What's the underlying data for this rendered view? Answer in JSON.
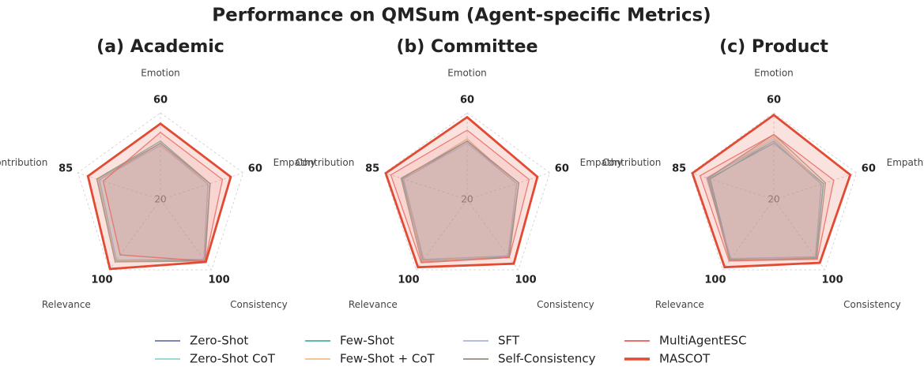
{
  "title": "Performance on QMSum (Agent-specific Metrics)",
  "chart_data": [
    {
      "type": "radar",
      "title": "(a) Academic",
      "axes": [
        "Emotion",
        "Empathy",
        "Consistency",
        "Relevance",
        "Contribution"
      ],
      "rmin": 20,
      "rmax": [
        60,
        60,
        100,
        100,
        85
      ],
      "series": [
        {
          "name": "Zero-Shot",
          "color": "#7f86b8",
          "values": [
            46,
            43,
            88,
            89,
            68
          ]
        },
        {
          "name": "Zero-Shot CoT",
          "color": "#9fd6d6",
          "values": [
            46,
            44,
            89,
            90,
            69
          ]
        },
        {
          "name": "Few-Shot",
          "color": "#5bbcae",
          "values": [
            47,
            44,
            89,
            90,
            70
          ]
        },
        {
          "name": "Few-Shot + CoT",
          "color": "#f2c79e",
          "values": [
            46,
            43,
            88,
            90,
            69
          ]
        },
        {
          "name": "SFT",
          "color": "#b3bbe2",
          "values": [
            45,
            43,
            88,
            89,
            68
          ]
        },
        {
          "name": "Self-Consistency",
          "color": "#a39a8a",
          "values": [
            46,
            44,
            90,
            91,
            70
          ]
        },
        {
          "name": "MultiAgentESC",
          "color": "#ef6f6c",
          "values": [
            51,
            50,
            90,
            83,
            65
          ]
        },
        {
          "name": "MASCOT",
          "color": "#e24a33",
          "values": [
            55,
            54,
            91,
            99,
            77
          ]
        }
      ]
    },
    {
      "type": "radar",
      "title": "(b) Committee",
      "axes": [
        "Emotion",
        "Empathy",
        "Consistency",
        "Relevance",
        "Contribution"
      ],
      "rmin": 20,
      "rmax": [
        60,
        60,
        100,
        100,
        85
      ],
      "series": [
        {
          "name": "Zero-Shot",
          "color": "#7f86b8",
          "values": [
            47,
            44,
            84,
            89,
            70
          ]
        },
        {
          "name": "Zero-Shot CoT",
          "color": "#9fd6d6",
          "values": [
            48,
            44,
            85,
            90,
            71
          ]
        },
        {
          "name": "Few-Shot",
          "color": "#5bbcae",
          "values": [
            47,
            45,
            85,
            89,
            71
          ]
        },
        {
          "name": "Few-Shot + CoT",
          "color": "#f2c79e",
          "values": [
            48,
            44,
            84,
            90,
            70
          ]
        },
        {
          "name": "SFT",
          "color": "#b3bbe2",
          "values": [
            46,
            44,
            84,
            88,
            70
          ]
        },
        {
          "name": "Self-Consistency",
          "color": "#a39a8a",
          "values": [
            47,
            45,
            86,
            91,
            72
          ]
        },
        {
          "name": "MultiAgentESC",
          "color": "#ef6f6c",
          "values": [
            52,
            50,
            86,
            92,
            80
          ]
        },
        {
          "name": "MASCOT",
          "color": "#e24a33",
          "values": [
            58,
            54,
            93,
            97,
            84
          ]
        }
      ]
    },
    {
      "type": "radar",
      "title": "(c) Product",
      "axes": [
        "Emotion",
        "Empathy",
        "Consistency",
        "Relevance",
        "Contribution"
      ],
      "rmin": 20,
      "rmax": [
        60,
        60,
        100,
        100,
        85
      ],
      "series": [
        {
          "name": "Zero-Shot",
          "color": "#7f86b8",
          "values": [
            47,
            43,
            85,
            88,
            70
          ]
        },
        {
          "name": "Zero-Shot CoT",
          "color": "#9fd6d6",
          "values": [
            48,
            44,
            86,
            88,
            72
          ]
        },
        {
          "name": "Few-Shot",
          "color": "#5bbcae",
          "values": [
            46,
            44,
            86,
            88,
            71
          ]
        },
        {
          "name": "Few-Shot + CoT",
          "color": "#f2c79e",
          "values": [
            49,
            43,
            85,
            89,
            72
          ]
        },
        {
          "name": "SFT",
          "color": "#b3bbe2",
          "values": [
            47,
            43,
            85,
            87,
            73
          ]
        },
        {
          "name": "Self-Consistency",
          "color": "#a39a8a",
          "values": [
            50,
            45,
            87,
            89,
            72
          ]
        },
        {
          "name": "MultiAgentESC",
          "color": "#ef6f6c",
          "values": [
            50,
            49,
            88,
            90,
            78
          ]
        },
        {
          "name": "MASCOT",
          "color": "#e24a33",
          "values": [
            59,
            57,
            92,
            97,
            84
          ]
        }
      ]
    }
  ]
}
